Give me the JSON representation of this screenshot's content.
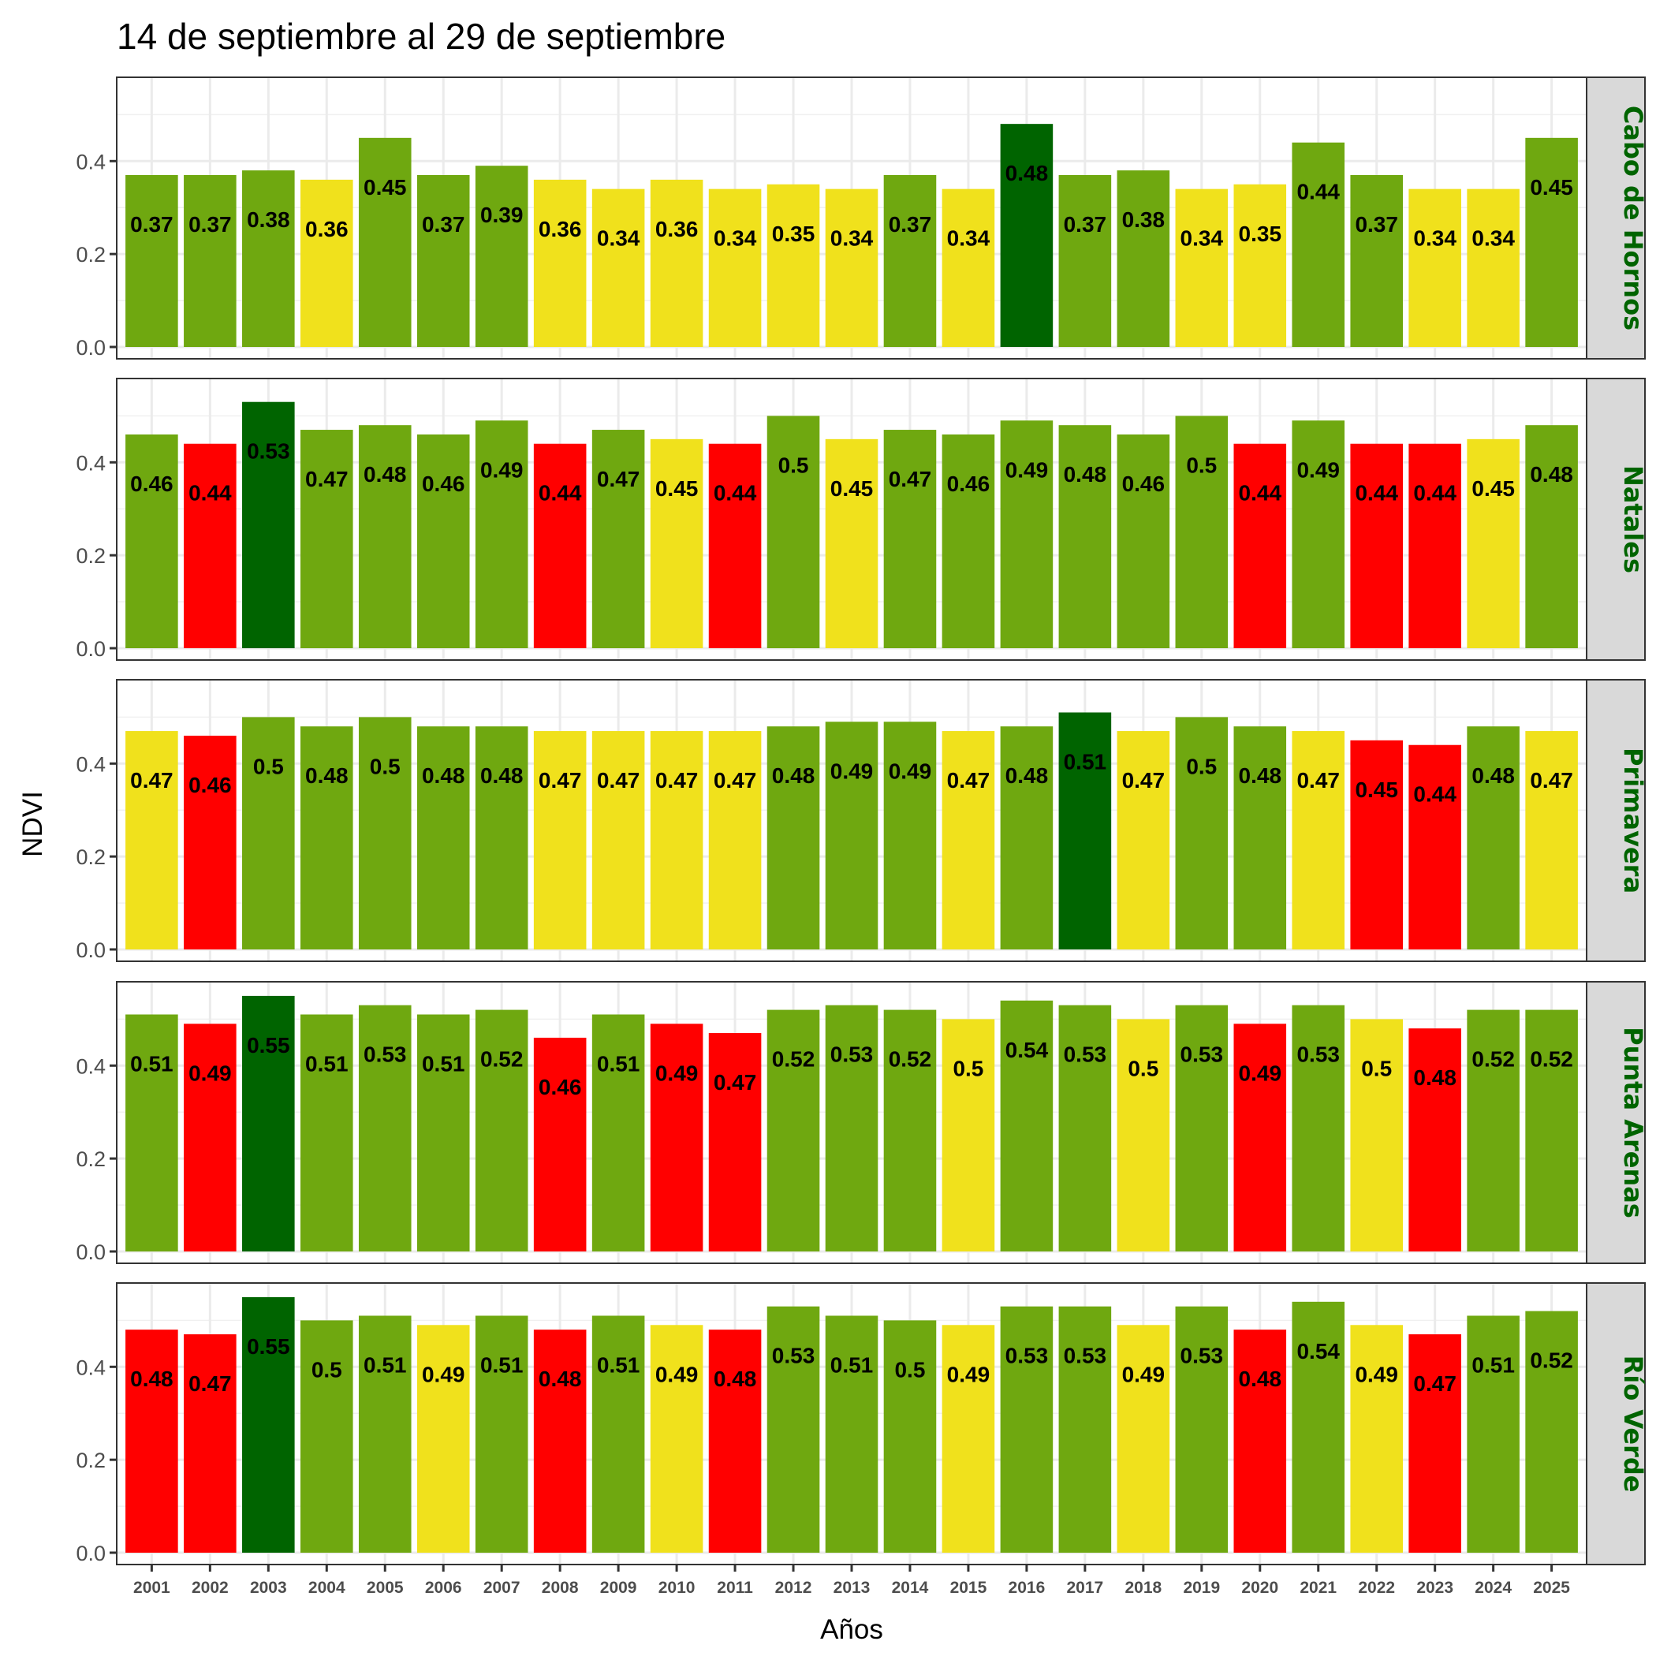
{
  "chart_data": {
    "type": "bar",
    "title": "14 de septiembre al 29 de septiembre",
    "xlabel": "Años",
    "ylabel": "NDVI",
    "ylim": [
      0,
      0.577
    ],
    "yticks": [
      "0.0",
      "0.2",
      "0.4"
    ],
    "ytick_values": [
      0,
      0.2,
      0.4
    ],
    "grid": true,
    "facet_layout": "rows, strip labels on right",
    "strip_text_color": "#006400",
    "strip_fill": "#d9d9d9",
    "categories": [
      "2001",
      "2002",
      "2003",
      "2004",
      "2005",
      "2006",
      "2007",
      "2008",
      "2009",
      "2010",
      "2011",
      "2012",
      "2013",
      "2014",
      "2015",
      "2016",
      "2017",
      "2018",
      "2019",
      "2020",
      "2021",
      "2022",
      "2023",
      "2024",
      "2025"
    ],
    "color_classes": {
      "max": "#006400",
      "above": "#6fa810",
      "normal": "#f0e11c",
      "below": "#ff0000"
    },
    "series": [
      {
        "name": "Cabo de Hornos",
        "values": [
          0.37,
          0.37,
          0.38,
          0.36,
          0.45,
          0.37,
          0.39,
          0.36,
          0.34,
          0.36,
          0.34,
          0.35,
          0.34,
          0.37,
          0.34,
          0.48,
          0.37,
          0.38,
          0.34,
          0.35,
          0.44,
          0.37,
          0.34,
          0.34,
          0.45
        ],
        "labels": [
          "0.37",
          "0.37",
          "0.38",
          "0.36",
          "0.45",
          "0.37",
          "0.39",
          "0.36",
          "0.34",
          "0.36",
          "0.34",
          "0.35",
          "0.34",
          "0.37",
          "0.34",
          "0.48",
          "0.37",
          "0.38",
          "0.34",
          "0.35",
          "0.44",
          "0.37",
          "0.34",
          "0.34",
          "0.45"
        ],
        "classes": [
          "above",
          "above",
          "above",
          "normal",
          "above",
          "above",
          "above",
          "normal",
          "normal",
          "normal",
          "normal",
          "normal",
          "normal",
          "above",
          "normal",
          "max",
          "above",
          "above",
          "normal",
          "normal",
          "above",
          "above",
          "normal",
          "normal",
          "above"
        ]
      },
      {
        "name": "Natales",
        "values": [
          0.46,
          0.44,
          0.53,
          0.47,
          0.48,
          0.46,
          0.49,
          0.44,
          0.47,
          0.45,
          0.44,
          0.5,
          0.45,
          0.47,
          0.46,
          0.49,
          0.48,
          0.46,
          0.5,
          0.44,
          0.49,
          0.44,
          0.44,
          0.45,
          0.48
        ],
        "labels": [
          "0.46",
          "0.44",
          "0.53",
          "0.47",
          "0.48",
          "0.46",
          "0.49",
          "0.44",
          "0.47",
          "0.45",
          "0.44",
          "0.5",
          "0.45",
          "0.47",
          "0.46",
          "0.49",
          "0.48",
          "0.46",
          "0.5",
          "0.44",
          "0.49",
          "0.44",
          "0.44",
          "0.45",
          "0.48"
        ],
        "classes": [
          "above",
          "below",
          "max",
          "above",
          "above",
          "above",
          "above",
          "below",
          "above",
          "normal",
          "below",
          "above",
          "normal",
          "above",
          "above",
          "above",
          "above",
          "above",
          "above",
          "below",
          "above",
          "below",
          "below",
          "normal",
          "above"
        ]
      },
      {
        "name": "Primavera",
        "values": [
          0.47,
          0.46,
          0.5,
          0.48,
          0.5,
          0.48,
          0.48,
          0.47,
          0.47,
          0.47,
          0.47,
          0.48,
          0.49,
          0.49,
          0.47,
          0.48,
          0.51,
          0.47,
          0.5,
          0.48,
          0.47,
          0.45,
          0.44,
          0.48,
          0.47
        ],
        "labels": [
          "0.47",
          "0.46",
          "0.5",
          "0.48",
          "0.5",
          "0.48",
          "0.48",
          "0.47",
          "0.47",
          "0.47",
          "0.47",
          "0.48",
          "0.49",
          "0.49",
          "0.47",
          "0.48",
          "0.51",
          "0.47",
          "0.5",
          "0.48",
          "0.47",
          "0.45",
          "0.44",
          "0.48",
          "0.47"
        ],
        "classes": [
          "normal",
          "below",
          "above",
          "above",
          "above",
          "above",
          "above",
          "normal",
          "normal",
          "normal",
          "normal",
          "above",
          "above",
          "above",
          "normal",
          "above",
          "max",
          "normal",
          "above",
          "above",
          "normal",
          "below",
          "below",
          "above",
          "normal"
        ]
      },
      {
        "name": "Punta Arenas",
        "values": [
          0.51,
          0.49,
          0.55,
          0.51,
          0.53,
          0.51,
          0.52,
          0.46,
          0.51,
          0.49,
          0.47,
          0.52,
          0.53,
          0.52,
          0.5,
          0.54,
          0.53,
          0.5,
          0.53,
          0.49,
          0.53,
          0.5,
          0.48,
          0.52,
          0.52
        ],
        "labels": [
          "0.51",
          "0.49",
          "0.55",
          "0.51",
          "0.53",
          "0.51",
          "0.52",
          "0.46",
          "0.51",
          "0.49",
          "0.47",
          "0.52",
          "0.53",
          "0.52",
          "0.5",
          "0.54",
          "0.53",
          "0.5",
          "0.53",
          "0.49",
          "0.53",
          "0.5",
          "0.48",
          "0.52",
          "0.52"
        ],
        "classes": [
          "above",
          "below",
          "max",
          "above",
          "above",
          "above",
          "above",
          "below",
          "above",
          "below",
          "below",
          "above",
          "above",
          "above",
          "normal",
          "above",
          "above",
          "normal",
          "above",
          "below",
          "above",
          "normal",
          "below",
          "above",
          "above"
        ]
      },
      {
        "name": "Río Verde",
        "values": [
          0.48,
          0.47,
          0.55,
          0.5,
          0.51,
          0.49,
          0.51,
          0.48,
          0.51,
          0.49,
          0.48,
          0.53,
          0.51,
          0.5,
          0.49,
          0.53,
          0.53,
          0.49,
          0.53,
          0.48,
          0.54,
          0.49,
          0.47,
          0.51,
          0.52
        ],
        "labels": [
          "0.48",
          "0.47",
          "0.55",
          "0.5",
          "0.51",
          "0.49",
          "0.51",
          "0.48",
          "0.51",
          "0.49",
          "0.48",
          "0.53",
          "0.51",
          "0.5",
          "0.49",
          "0.53",
          "0.53",
          "0.49",
          "0.53",
          "0.48",
          "0.54",
          "0.49",
          "0.47",
          "0.51",
          "0.52"
        ],
        "classes": [
          "below",
          "below",
          "max",
          "above",
          "above",
          "normal",
          "above",
          "below",
          "above",
          "normal",
          "below",
          "above",
          "above",
          "above",
          "normal",
          "above",
          "above",
          "normal",
          "above",
          "below",
          "above",
          "normal",
          "below",
          "above",
          "above"
        ]
      }
    ]
  }
}
